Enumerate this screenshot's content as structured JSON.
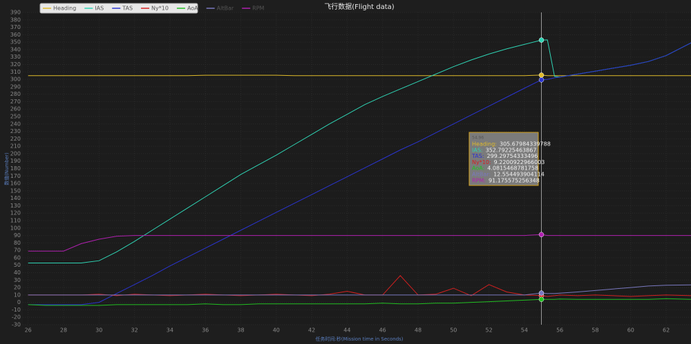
{
  "chart_data": {
    "type": "line",
    "title": "飞行数据(Flight data)",
    "y_label": "数值(Number)",
    "x_label": "任务时间:秒(Mission time in Seconds)",
    "x": [
      26,
      27,
      28,
      29,
      30,
      31,
      32,
      33,
      34,
      35,
      36,
      37,
      38,
      39,
      40,
      41,
      42,
      43,
      44,
      45,
      46,
      47,
      48,
      49,
      50,
      51,
      52,
      53,
      54,
      54.96,
      55.3,
      55.7,
      56,
      57,
      58,
      59,
      60,
      61,
      62,
      63.4
    ],
    "series": [
      {
        "name": "Heading",
        "color": "#e0bb2a",
        "values": [
          305,
          305,
          305,
          305,
          305,
          305,
          305,
          305,
          305,
          305,
          305.5,
          305.5,
          305.5,
          305.5,
          305.5,
          305,
          305,
          305,
          305,
          305,
          305,
          305,
          305,
          305,
          305,
          305,
          305,
          305,
          305,
          305.68,
          305,
          305,
          305,
          305,
          305,
          305,
          305,
          305,
          305,
          305
        ]
      },
      {
        "name": "IAS",
        "color": "#2fd5b5",
        "values": [
          53,
          53,
          53,
          53,
          56,
          68,
          82,
          97,
          112,
          127,
          142,
          157,
          172,
          185,
          198,
          212,
          226,
          240,
          253,
          266,
          277,
          287,
          297,
          307,
          317,
          326,
          334,
          341,
          347,
          352.79,
          353,
          304,
          303,
          307,
          311,
          315,
          319,
          324,
          332,
          349
        ]
      },
      {
        "name": "TAS",
        "color": "#2a34d0",
        "values": [
          -3,
          -3,
          -3,
          -3,
          0,
          12,
          24,
          36,
          49,
          61,
          73,
          85,
          97,
          109,
          121,
          133,
          145,
          157,
          169,
          181,
          193,
          205,
          216,
          228,
          240,
          252,
          264,
          276,
          288,
          299.3,
          300,
          302,
          303,
          307,
          311,
          315,
          319,
          324,
          332,
          349
        ]
      },
      {
        "name": "Ny*10",
        "color": "#d42020",
        "values": [
          10,
          10,
          10,
          10,
          11,
          9,
          11,
          10,
          9,
          10,
          11,
          10,
          9,
          10,
          11,
          10,
          9,
          11,
          15,
          10,
          10,
          36,
          10,
          11,
          19,
          9,
          24,
          14,
          10,
          9.22,
          8,
          9,
          10,
          9,
          10,
          9,
          8,
          9,
          10,
          9
        ]
      },
      {
        "name": "AoA",
        "color": "#22c022",
        "values": [
          -3,
          -4,
          -4,
          -4,
          -4,
          -3,
          -3,
          -3,
          -3,
          -3,
          -2,
          -3,
          -3,
          -2,
          -2,
          -2,
          -2,
          -2,
          -2,
          -2,
          -1,
          -2,
          -2,
          -1,
          -1,
          0,
          1,
          2,
          3,
          4.08,
          4,
          4,
          4.5,
          4,
          4,
          4,
          4,
          4,
          5,
          4
        ]
      },
      {
        "name": "AltBar",
        "color": "#7a79c0",
        "values": [
          10,
          10,
          10,
          10,
          10,
          10,
          10,
          10,
          10,
          10,
          10,
          10,
          10,
          10,
          10,
          10,
          10,
          10,
          10,
          10,
          10,
          10,
          10,
          10,
          10,
          10,
          10,
          10,
          10,
          12.55,
          12,
          12,
          12.5,
          14,
          16,
          18,
          20,
          22,
          23,
          23.5
        ]
      },
      {
        "name": "RPM",
        "color": "#b020b0",
        "values": [
          69,
          69,
          69,
          79,
          85,
          89,
          90,
          90,
          90,
          90,
          90,
          90,
          90,
          90,
          90,
          90,
          90,
          90,
          90,
          90,
          90,
          90,
          90,
          90,
          90,
          90,
          90,
          90,
          90,
          91.18,
          90,
          90,
          90,
          90,
          90,
          90,
          90,
          90,
          90,
          90
        ]
      }
    ],
    "xlim": [
      25.7,
      63.4
    ],
    "ylim": [
      -30,
      390
    ],
    "xticks": [
      26,
      28,
      30,
      32,
      34,
      36,
      38,
      40,
      42,
      44,
      46,
      48,
      50,
      52,
      54,
      56,
      58,
      60,
      62
    ],
    "yticks": [
      -30,
      -20,
      -10,
      0,
      10,
      20,
      30,
      40,
      50,
      60,
      70,
      80,
      90,
      100,
      110,
      120,
      130,
      140,
      150,
      160,
      170,
      180,
      190,
      200,
      210,
      220,
      230,
      240,
      250,
      260,
      270,
      280,
      290,
      300,
      310,
      320,
      330,
      340,
      350,
      360,
      370,
      380,
      390
    ],
    "grid": true,
    "legend": "top-left",
    "cursor_x": 54.96,
    "tooltip": {
      "title": "54.96",
      "items": [
        {
          "label": "Heading:",
          "value": "305.67984339788"
        },
        {
          "label": "IAS:",
          "value": "352.79225463867"
        },
        {
          "label": "TAS:",
          "value": "299.29754333496"
        },
        {
          "label": "Ny*10:",
          "value": "9.2200922966003"
        },
        {
          "label": "AoA:",
          "value": "4.0815468781758"
        },
        {
          "label": "AltBar:",
          "value": "12.554493904114"
        },
        {
          "label": "RPM:",
          "value": "91.175575256348"
        }
      ]
    }
  }
}
